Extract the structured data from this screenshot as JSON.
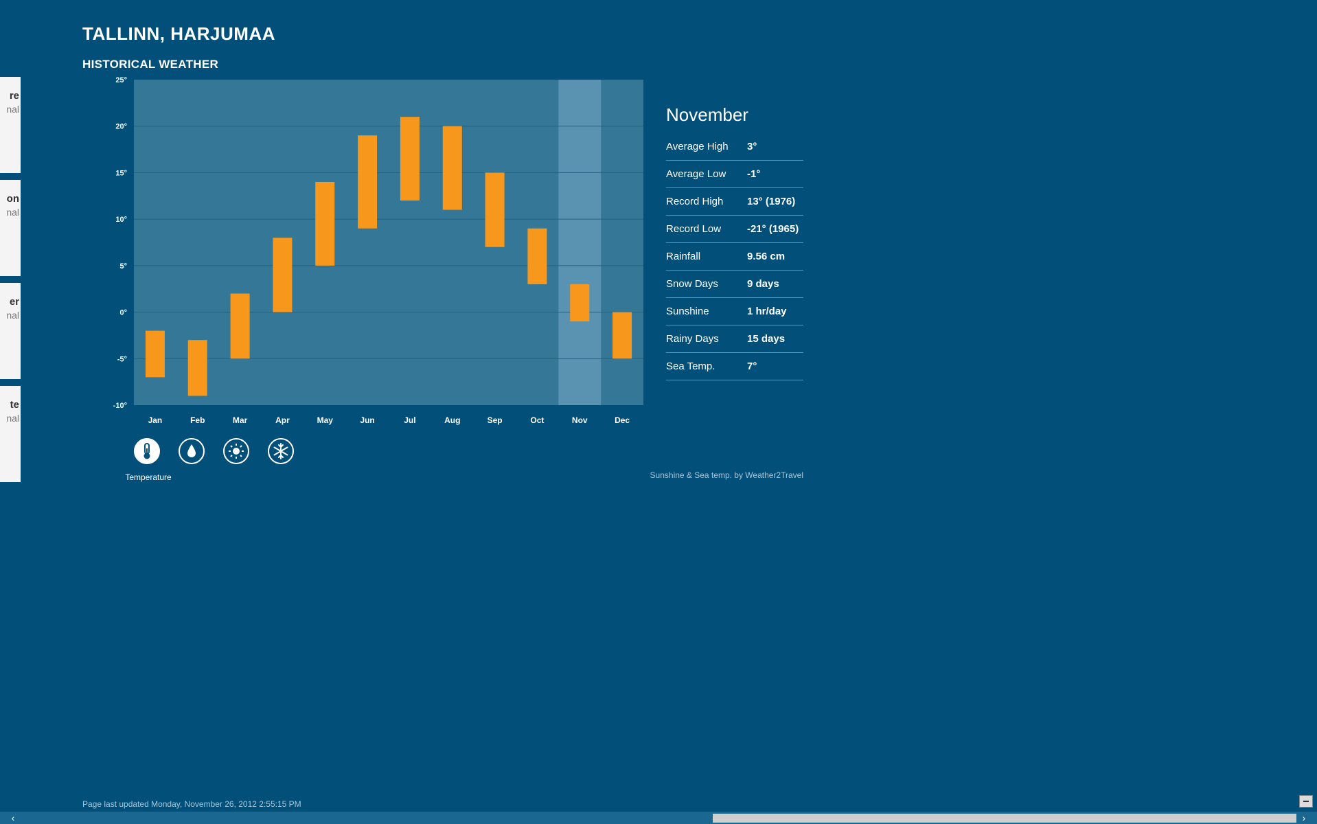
{
  "header": {
    "city": "TALLINN, HARJUMAA",
    "section": "HISTORICAL WEATHER"
  },
  "left_cards": [
    {
      "line1": "re",
      "line2": "nal"
    },
    {
      "line1": "on",
      "line2": "nal"
    },
    {
      "line1": "er",
      "line2": "nal"
    },
    {
      "line1": "te",
      "line2": "nal"
    }
  ],
  "chart_data": {
    "type": "bar",
    "categories": [
      "Jan",
      "Feb",
      "Mar",
      "Apr",
      "May",
      "Jun",
      "Jul",
      "Aug",
      "Sep",
      "Oct",
      "Nov",
      "Dec"
    ],
    "series": [
      {
        "low": -7,
        "high": -2
      },
      {
        "low": -9,
        "high": -3
      },
      {
        "low": -5,
        "high": 2
      },
      {
        "low": 0,
        "high": 8
      },
      {
        "low": 5,
        "high": 14
      },
      {
        "low": 9,
        "high": 19
      },
      {
        "low": 12,
        "high": 21
      },
      {
        "low": 11,
        "high": 20
      },
      {
        "low": 7,
        "high": 15
      },
      {
        "low": 3,
        "high": 9
      },
      {
        "low": -1,
        "high": 3
      },
      {
        "low": -5,
        "high": 0
      }
    ],
    "yticks": [
      "25°",
      "20°",
      "15°",
      "10°",
      "5°",
      "0°",
      "-5°",
      "-10°"
    ],
    "ylim": [
      -10,
      25
    ],
    "highlight_index": 10,
    "grid": true,
    "bar_color": "#f7981d"
  },
  "icons": [
    {
      "name": "thermometer-icon",
      "active": true
    },
    {
      "name": "raindrop-icon",
      "active": false
    },
    {
      "name": "sun-icon",
      "active": false
    },
    {
      "name": "snowflake-icon",
      "active": false
    }
  ],
  "active_icon_label": "Temperature",
  "details": {
    "month": "November",
    "rows": [
      {
        "label": "Average High",
        "value": "3°"
      },
      {
        "label": "Average Low",
        "value": "-1°"
      },
      {
        "label": "Record High",
        "value": "13° (1976)"
      },
      {
        "label": "Record Low",
        "value": "-21° (1965)"
      },
      {
        "label": "Rainfall",
        "value": "9.56 cm"
      },
      {
        "label": "Snow Days",
        "value": "9 days"
      },
      {
        "label": "Sunshine",
        "value": "1 hr/day"
      },
      {
        "label": "Rainy Days",
        "value": "15 days"
      },
      {
        "label": "Sea Temp.",
        "value": "7°"
      }
    ]
  },
  "credit": "Sunshine & Sea temp. by Weather2Travel",
  "footer": {
    "updated": "Page last updated Monday, November 26, 2012 2:55:15 PM"
  },
  "scrollbar": {
    "left_arrow": "‹",
    "right_arrow": "›"
  }
}
